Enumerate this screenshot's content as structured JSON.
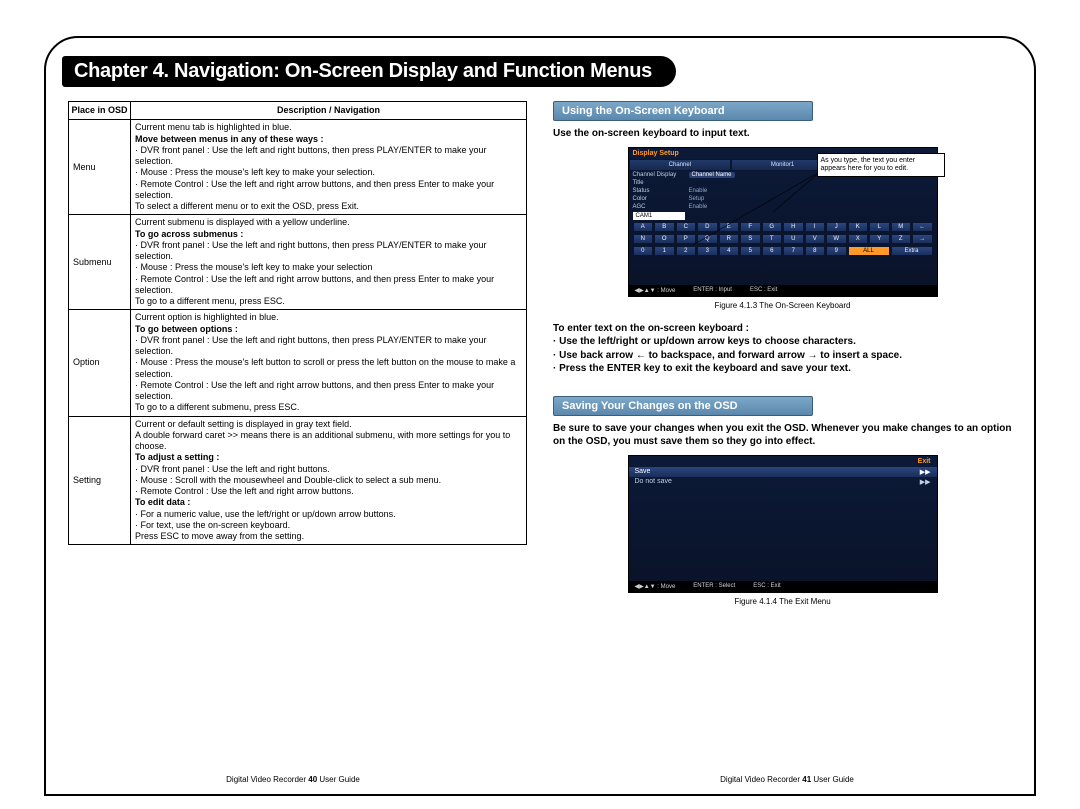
{
  "chapter_title": "Chapter 4. Navigation: On-Screen Display and Function Menus",
  "table": {
    "headers": [
      "Place in OSD",
      "Description / Navigation"
    ],
    "rows": [
      {
        "place": "Menu",
        "lines": [
          {
            "t": "Current menu tab is highlighted in blue."
          },
          {
            "t": "Move between menus in any of these ways :",
            "b": true
          },
          {
            "t": "· DVR front panel : Use the left and right buttons, then press PLAY/ENTER to make your selection."
          },
          {
            "t": "· Mouse : Press the mouse's left key to make your selection."
          },
          {
            "t": "· Remote Control : Use the left and right arrow buttons, and then press Enter to make your selection."
          },
          {
            "t": "To select a different menu or to exit the OSD, press Exit."
          }
        ]
      },
      {
        "place": "Submenu",
        "lines": [
          {
            "t": "Current submenu is displayed with a yellow underline."
          },
          {
            "t": "To go across submenus :",
            "b": true
          },
          {
            "t": "· DVR front panel : Use the left and right buttons, then press PLAY/ENTER to make your selection."
          },
          {
            "t": "· Mouse : Press the mouse's left key to make your selection"
          },
          {
            "t": "· Remote Control : Use the left and right arrow buttons, and then press Enter to make your selection."
          },
          {
            "t": "To go to a different menu, press ESC."
          }
        ]
      },
      {
        "place": "Option",
        "lines": [
          {
            "t": "Current option is highlighted in blue."
          },
          {
            "t": "To go between options :",
            "b": true
          },
          {
            "t": "· DVR front panel : Use the left and right buttons, then press PLAY/ENTER to make your selection."
          },
          {
            "t": "· Mouse : Press the mouse's left button to scroll or press the left button on the mouse to make a selection."
          },
          {
            "t": "· Remote Control : Use the left and right arrow buttons, and then press Enter to make your selection."
          },
          {
            "t": "To go to a different submenu, press ESC."
          }
        ]
      },
      {
        "place": "Setting",
        "lines": [
          {
            "t": "Current or default setting is displayed in gray text field."
          },
          {
            "t": "A double forward caret >> means there is an additional submenu, with more settings for you to choose."
          },
          {
            "t": "To adjust a setting :",
            "b": true
          },
          {
            "t": "· DVR front panel : Use the left and right buttons."
          },
          {
            "t": "· Mouse : Scroll with the mousewheel and Double-click to select a sub menu."
          },
          {
            "t": "· Remote Control : Use the left and right arrow buttons."
          },
          {
            "t": "To edit data :",
            "b": true
          },
          {
            "t": "· For a numeric value, use the left/right or up/down arrow buttons."
          },
          {
            "t": "· For text, use the on-screen keyboard."
          },
          {
            "t": "Press ESC to move away from the setting."
          }
        ]
      }
    ]
  },
  "right": {
    "kbd_heading": "Using the On-Screen Keyboard",
    "kbd_intro": "Use the on-screen keyboard to input text.",
    "kbd_tooltip": "As you type, the text you enter appears here for you to edit.",
    "kbd_caption": "Figure 4.1.3 The On-Screen Keyboard",
    "kbd_steps_lead": "To enter text on the on-screen keyboard :",
    "kbd_steps": [
      "· Use the left/right or up/down arrow keys to choose characters.",
      "· Use back arrow ← to backspace, and forward arrow → to insert a space.",
      "· Press the ENTER key to exit the keyboard and save your text."
    ],
    "save_heading": "Saving Your Changes on the OSD",
    "save_body": "Be sure to save your changes when you exit the OSD. Whenever you make changes to an option on the OSD, you must save them so they go into effect.",
    "exit_caption": "Figure 4.1.4 The Exit Menu"
  },
  "osd_kbd": {
    "title": "Display Setup",
    "tabs": [
      "Channel",
      "Monitor1",
      "SPOT"
    ],
    "fields": [
      {
        "label": "Channel Display",
        "value": "Channel Name",
        "hl": true
      },
      {
        "label": "Title",
        "value": ""
      },
      {
        "label": "Status",
        "value": "Enable"
      },
      {
        "label": "Color",
        "value": "Setup"
      },
      {
        "label": "AGC",
        "value": "Enable"
      }
    ],
    "entry": "CAM1",
    "row1": [
      "A",
      "B",
      "C",
      "D",
      "E",
      "F",
      "G",
      "H",
      "I",
      "J",
      "K",
      "L",
      "M",
      "←"
    ],
    "row2": [
      "N",
      "O",
      "P",
      "Q",
      "R",
      "S",
      "T",
      "U",
      "V",
      "W",
      "X",
      "Y",
      "Z",
      "→"
    ],
    "row3_nums": [
      "0",
      "1",
      "2",
      "3",
      "4",
      "5",
      "6",
      "7",
      "8",
      "9"
    ],
    "row3_extra": [
      "ALL",
      "Extra"
    ],
    "bottom": [
      "◀▶▲▼ : Move",
      "ENTER : Input",
      "ESC : Exit"
    ]
  },
  "osd_exit": {
    "title": "Exit",
    "rows": [
      {
        "l": "Save",
        "r": "▶▶",
        "hl": true
      },
      {
        "l": "Do not save",
        "r": "▶▶"
      }
    ],
    "bottom": [
      "◀▶▲▼ : Move",
      "ENTER : Select",
      "ESC : Exit"
    ]
  },
  "footer": {
    "left_pre": "Digital Video Recorder ",
    "left_pg": "40",
    "left_post": " User Guide",
    "right_pre": "Digital Video Recorder ",
    "right_pg": "41",
    "right_post": " User Guide"
  }
}
